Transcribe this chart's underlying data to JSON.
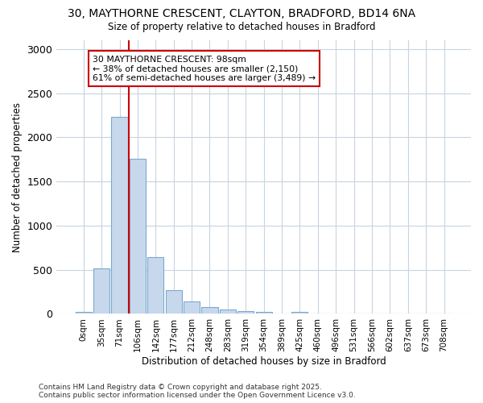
{
  "title1": "30, MAYTHORNE CRESCENT, CLAYTON, BRADFORD, BD14 6NA",
  "title2": "Size of property relative to detached houses in Bradford",
  "xlabel": "Distribution of detached houses by size in Bradford",
  "ylabel": "Number of detached properties",
  "categories": [
    "0sqm",
    "35sqm",
    "71sqm",
    "106sqm",
    "142sqm",
    "177sqm",
    "212sqm",
    "248sqm",
    "283sqm",
    "319sqm",
    "354sqm",
    "389sqm",
    "425sqm",
    "460sqm",
    "496sqm",
    "531sqm",
    "566sqm",
    "602sqm",
    "637sqm",
    "673sqm",
    "708sqm"
  ],
  "values": [
    20,
    520,
    2230,
    1760,
    640,
    265,
    145,
    75,
    50,
    30,
    20,
    5,
    25,
    2,
    2,
    2,
    2,
    2,
    2,
    2,
    2
  ],
  "bar_color": "#c8d8ec",
  "bar_edge_color": "#7aaacf",
  "vline_color": "#cc0000",
  "annotation_text": "30 MAYTHORNE CRESCENT: 98sqm\n← 38% of detached houses are smaller (2,150)\n61% of semi-detached houses are larger (3,489) →",
  "annotation_box_color": "#ffffff",
  "annotation_box_edge": "#cc0000",
  "ylim": [
    0,
    3100
  ],
  "yticks": [
    0,
    500,
    1000,
    1500,
    2000,
    2500,
    3000
  ],
  "background_color": "#ffffff",
  "fig_background_color": "#ffffff",
  "footer1": "Contains HM Land Registry data © Crown copyright and database right 2025.",
  "footer2": "Contains public sector information licensed under the Open Government Licence v3.0."
}
